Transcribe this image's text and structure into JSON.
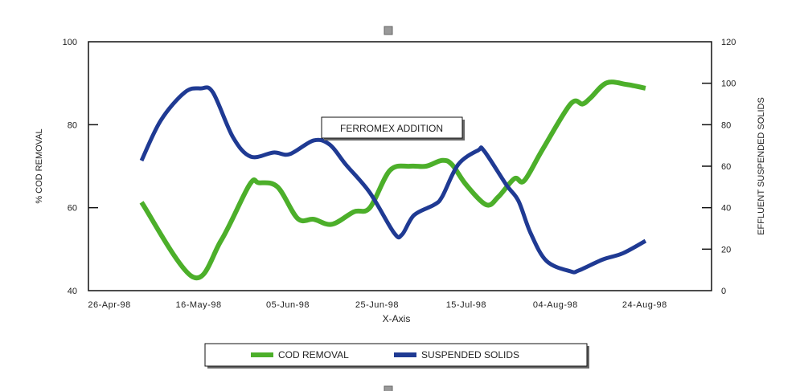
{
  "chart_data": {
    "type": "line",
    "title": "",
    "xlabel": "X-Axis",
    "ylabel_left": "% COD REMOVAL",
    "ylabel_right": "EFFLUENT SUSPENDED SOLIDS",
    "x_unit": "days since 26-Apr-98",
    "xlim": [
      -4.7,
      135
    ],
    "x_ticks": [
      {
        "day": 0,
        "label": "26-Apr-98"
      },
      {
        "day": 20,
        "label": "16-May-98"
      },
      {
        "day": 40,
        "label": "05-Jun-98"
      },
      {
        "day": 60,
        "label": "25-Jun-98"
      },
      {
        "day": 80,
        "label": "15-Jul-98"
      },
      {
        "day": 100,
        "label": "04-Aug-98"
      },
      {
        "day": 120,
        "label": "24-Aug-98"
      }
    ],
    "ylim_left": [
      40,
      100
    ],
    "y_ticks_left": [
      "40",
      "60",
      "80",
      "100"
    ],
    "ylim_right": [
      0,
      120
    ],
    "y_ticks_right": [
      "0",
      "20",
      "40",
      "60",
      "80",
      "100",
      "120"
    ],
    "grid": false,
    "annotation": "FERROMEX ADDITION",
    "legend_position": "bottom",
    "series": [
      {
        "name": "COD REMOVAL",
        "axis": "left",
        "color": "#4caf2a",
        "x": [
          7.2,
          18.7,
          25,
          31.4,
          33.5,
          37.7,
          42.2,
          45.8,
          49.9,
          54.8,
          58.4,
          62.9,
          67.4,
          71,
          74.6,
          76.8,
          80,
          84.5,
          87.2,
          90.8,
          93,
          97.1,
          103.4,
          106.1,
          107.9,
          111.5,
          116,
          120.2
        ],
        "y": [
          61.3,
          43.3,
          52,
          65.5,
          66,
          65,
          57.4,
          57.2,
          56,
          59,
          60,
          69,
          70,
          70,
          71.4,
          70.4,
          65.5,
          60.7,
          62.6,
          67,
          66.5,
          74,
          85,
          85,
          86.5,
          90.1,
          89.7,
          88.8
        ]
      },
      {
        "name": "SUSPENDED SOLIDS",
        "axis": "right",
        "color": "#1f3a93",
        "x": [
          7.2,
          11.5,
          16.9,
          20.5,
          23.2,
          27.7,
          31.7,
          36.8,
          40.4,
          45.8,
          49.4,
          53,
          58.4,
          63.8,
          65.6,
          68.3,
          72.8,
          74.6,
          78.2,
          82.7,
          84,
          89,
          91.7,
          94.4,
          98,
          103.4,
          105.2,
          110.6,
          115.1,
          120.2
        ],
        "y": [
          62.7,
          82,
          95.6,
          97.5,
          95.6,
          74,
          64.6,
          66.6,
          65.8,
          72.4,
          70.4,
          60.8,
          47.2,
          27.9,
          27,
          36.4,
          41.4,
          45.3,
          60.8,
          67.7,
          67.4,
          51,
          43.3,
          27.9,
          14.3,
          9.3,
          9.7,
          15,
          18,
          24
        ]
      }
    ]
  }
}
